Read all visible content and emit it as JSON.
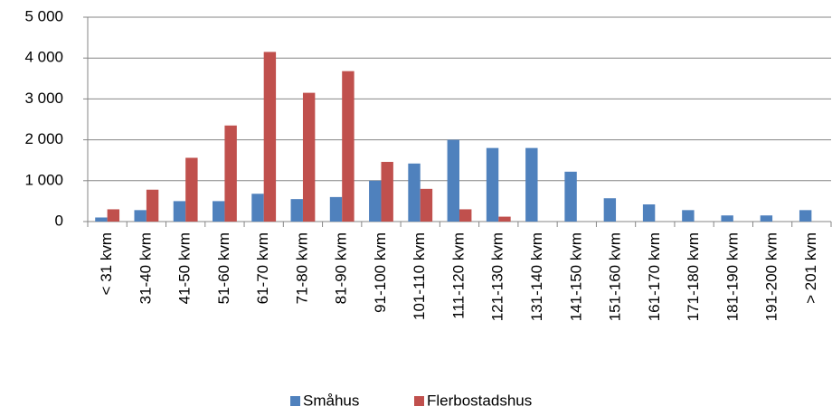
{
  "chart_data": {
    "type": "bar",
    "categories": [
      "< 31 kvm",
      "31-40 kvm",
      "41-50 kvm",
      "51-60 kvm",
      "61-70 kvm",
      "71-80 kvm",
      "81-90 kvm",
      "91-100 kvm",
      "101-110 kvm",
      "111-120 kvm",
      "121-130 kvm",
      "131-140 kvm",
      "141-150 kvm",
      "151-160 kvm",
      "161-170 kvm",
      "171-180 kvm",
      "181-190 kvm",
      "191-200 kvm",
      "> 201 kvm"
    ],
    "series": [
      {
        "name": "Småhus",
        "color": "#4f81bd",
        "values": [
          100,
          280,
          500,
          500,
          680,
          550,
          600,
          1000,
          1420,
          2000,
          1800,
          1800,
          1220,
          570,
          420,
          280,
          150,
          150,
          280
        ]
      },
      {
        "name": "Flerbostadshus",
        "color": "#c0504d",
        "values": [
          300,
          780,
          1560,
          2350,
          4150,
          3150,
          3680,
          1460,
          800,
          300,
          120,
          0,
          0,
          0,
          0,
          0,
          0,
          0,
          0
        ]
      }
    ],
    "ylim": [
      0,
      5000
    ],
    "yticks": [
      0,
      {
        "value": 1000,
        "label": "1 000"
      },
      {
        "value": 2000,
        "label": "2 000"
      },
      {
        "value": 3000,
        "label": "3 000"
      },
      {
        "value": 4000,
        "label": "4 000"
      },
      {
        "value": 5000,
        "label": "5 000"
      }
    ],
    "grid": true,
    "legend": "bottom"
  }
}
